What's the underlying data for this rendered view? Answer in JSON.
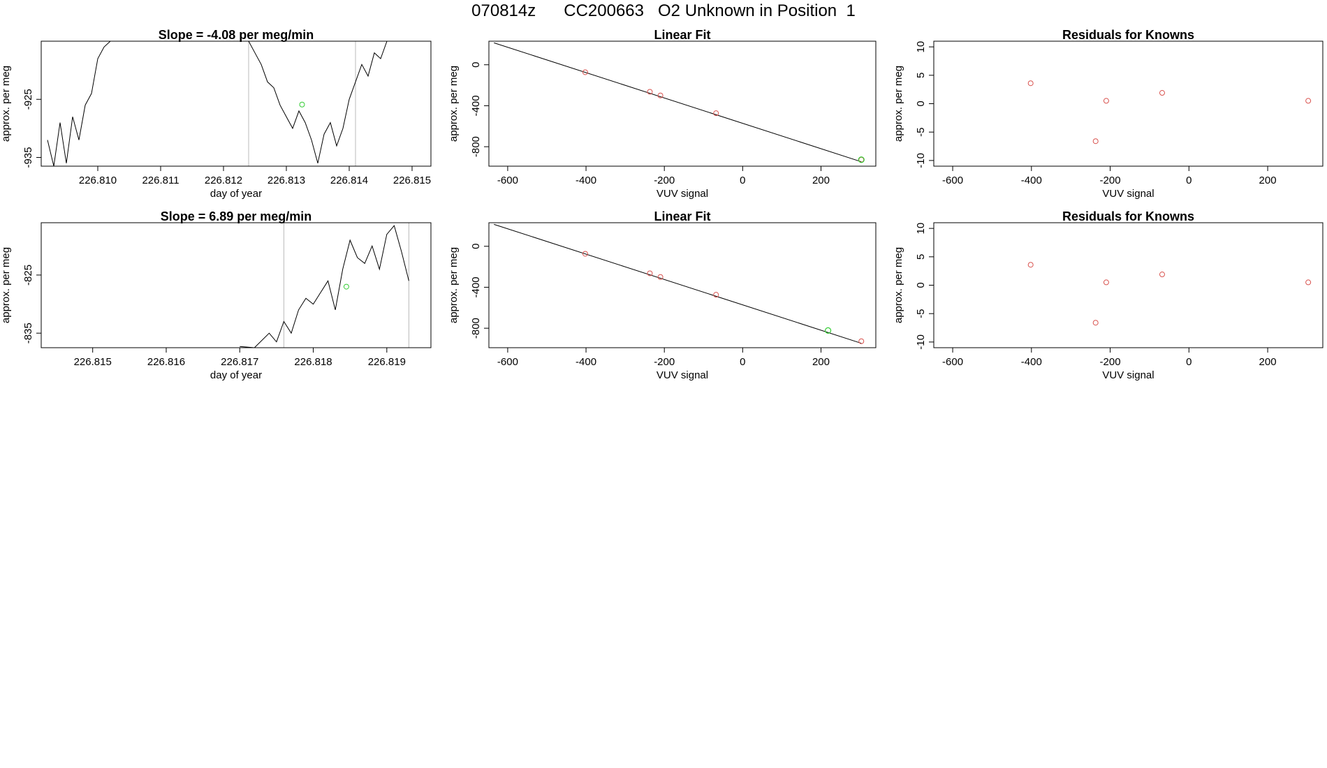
{
  "page": {
    "main_title": "070814z      CC200663   O2 Unknown in Position  1"
  },
  "colors": {
    "frame": "#000000",
    "trace": "#000000",
    "known_point": "#d9534f",
    "unknown_point": "#33cc33",
    "bound_line": "#bbbbbb"
  },
  "chart_data": [
    {
      "type": "line",
      "title": "Slope =  -4.08  per meg/min",
      "xlabel": "day of year",
      "ylabel": "approx. per meg",
      "xlim": [
        226.8091,
        226.8153
      ],
      "ylim": [
        -936.5,
        -915.0
      ],
      "xticks": [
        "226.810",
        "226.811",
        "226.812",
        "226.813",
        "226.814",
        "226.815"
      ],
      "yticks": [
        "-925",
        "-935"
      ],
      "vlines": [
        226.8124,
        226.8141
      ],
      "x": [
        226.8092,
        226.8093,
        226.8094,
        226.8095,
        226.8096,
        226.8097,
        226.8098,
        226.8099,
        226.81,
        226.8101,
        226.8102,
        226.8103,
        226.8124,
        226.8125,
        226.8126,
        226.8127,
        226.8128,
        226.8129,
        226.813,
        226.8131,
        226.8132,
        226.8133,
        226.8134,
        226.8135,
        226.8136,
        226.8137,
        226.8138,
        226.8139,
        226.814,
        226.8141,
        226.8142,
        226.8143,
        226.8144,
        226.8145,
        226.8146
      ],
      "values": [
        -932,
        -936.5,
        -929,
        -936,
        -928,
        -932,
        -926,
        -924,
        -918,
        -916,
        -915,
        -914,
        -915,
        -917,
        -919,
        -922,
        -923,
        -926,
        -928,
        -930,
        -927,
        -929,
        -932,
        -936,
        -931,
        -929,
        -933,
        -930,
        -925,
        -922,
        -919,
        -921,
        -917,
        -918,
        -915
      ],
      "unknown_point": {
        "x": 226.81325,
        "y": -925.9
      },
      "grid": false,
      "legend": "none"
    },
    {
      "type": "scatter",
      "title": "Linear Fit",
      "xlabel": "VUV signal",
      "ylabel": "approx. per meg",
      "xlim": [
        -648,
        340
      ],
      "ylim": [
        -990,
        230
      ],
      "xticks": [
        "-600",
        "-400",
        "-200",
        "0",
        "200"
      ],
      "yticks": [
        "0",
        "-400",
        "-800"
      ],
      "fit_line": {
        "x": [
          -635,
          303
        ],
        "y": [
          214,
          -947
        ]
      },
      "known_points": {
        "x": [
          -402,
          -237,
          -210,
          -68,
          303
        ],
        "y": [
          -73,
          -264,
          -300,
          -473,
          -927
        ]
      },
      "unknown_point": {
        "x": 303,
        "y": -927
      },
      "grid": false,
      "legend": "none"
    },
    {
      "type": "scatter",
      "title": "Residuals for Knowns",
      "xlabel": "VUV signal",
      "ylabel": "approx. per meg",
      "xlim": [
        -648,
        340
      ],
      "ylim": [
        -11,
        11
      ],
      "xticks": [
        "-600",
        "-400",
        "-200",
        "0",
        "200"
      ],
      "yticks": [
        "10",
        "5",
        "0",
        "-5",
        "-10"
      ],
      "x": [
        -402,
        -237,
        -210,
        -68,
        303
      ],
      "values": [
        3.6,
        -6.6,
        0.5,
        1.9,
        0.5
      ],
      "grid": false,
      "legend": "none"
    },
    {
      "type": "line",
      "title": "Slope =  6.89  per meg/min",
      "xlabel": "day of year",
      "ylabel": "approx. per meg",
      "xlim": [
        226.8143,
        226.8196
      ],
      "ylim": [
        -837.5,
        -816.0
      ],
      "xticks": [
        "226.815",
        "226.816",
        "226.817",
        "226.818",
        "226.819"
      ],
      "yticks": [
        "-825",
        "-835"
      ],
      "vlines": [
        226.8176,
        226.8193
      ],
      "x": [
        226.817,
        226.8172,
        226.8174,
        226.8175,
        226.8176,
        226.8177,
        226.8178,
        226.8179,
        226.818,
        226.8181,
        226.8182,
        226.8183,
        226.8184,
        226.8185,
        226.8186,
        226.8187,
        226.8188,
        226.8189,
        226.819,
        226.8191,
        226.8192,
        226.8193
      ],
      "values": [
        -837.3,
        -837.5,
        -835.0,
        -836.5,
        -833.0,
        -835.0,
        -831.0,
        -829.0,
        -830.0,
        -828.0,
        -826.0,
        -831.0,
        -824.0,
        -819.0,
        -822.0,
        -823.0,
        -820.0,
        -824.0,
        -818.0,
        -816.5,
        -821.0,
        -826.0
      ],
      "unknown_point": {
        "x": 226.81845,
        "y": -827.0
      },
      "grid": false,
      "legend": "none"
    },
    {
      "type": "scatter",
      "title": "Linear Fit",
      "xlabel": "VUV signal",
      "ylabel": "approx. per meg",
      "xlim": [
        -648,
        340
      ],
      "ylim": [
        -990,
        230
      ],
      "xticks": [
        "-600",
        "-400",
        "-200",
        "0",
        "200"
      ],
      "yticks": [
        "0",
        "-400",
        "-800"
      ],
      "fit_line": {
        "x": [
          -635,
          303
        ],
        "y": [
          214,
          -947
        ]
      },
      "known_points": {
        "x": [
          -402,
          -237,
          -210,
          -68,
          303
        ],
        "y": [
          -73,
          -264,
          -300,
          -473,
          -927
        ]
      },
      "unknown_point": {
        "x": 218,
        "y": -822
      },
      "grid": false,
      "legend": "none"
    },
    {
      "type": "scatter",
      "title": "Residuals for Knowns",
      "xlabel": "VUV signal",
      "ylabel": "approx. per meg",
      "xlim": [
        -648,
        340
      ],
      "ylim": [
        -11,
        11
      ],
      "xticks": [
        "-600",
        "-400",
        "-200",
        "0",
        "200"
      ],
      "yticks": [
        "10",
        "5",
        "0",
        "-5",
        "-10"
      ],
      "x": [
        -402,
        -237,
        -210,
        -68,
        303
      ],
      "values": [
        3.6,
        -6.6,
        0.5,
        1.9,
        0.5
      ],
      "grid": false,
      "legend": "none"
    }
  ]
}
